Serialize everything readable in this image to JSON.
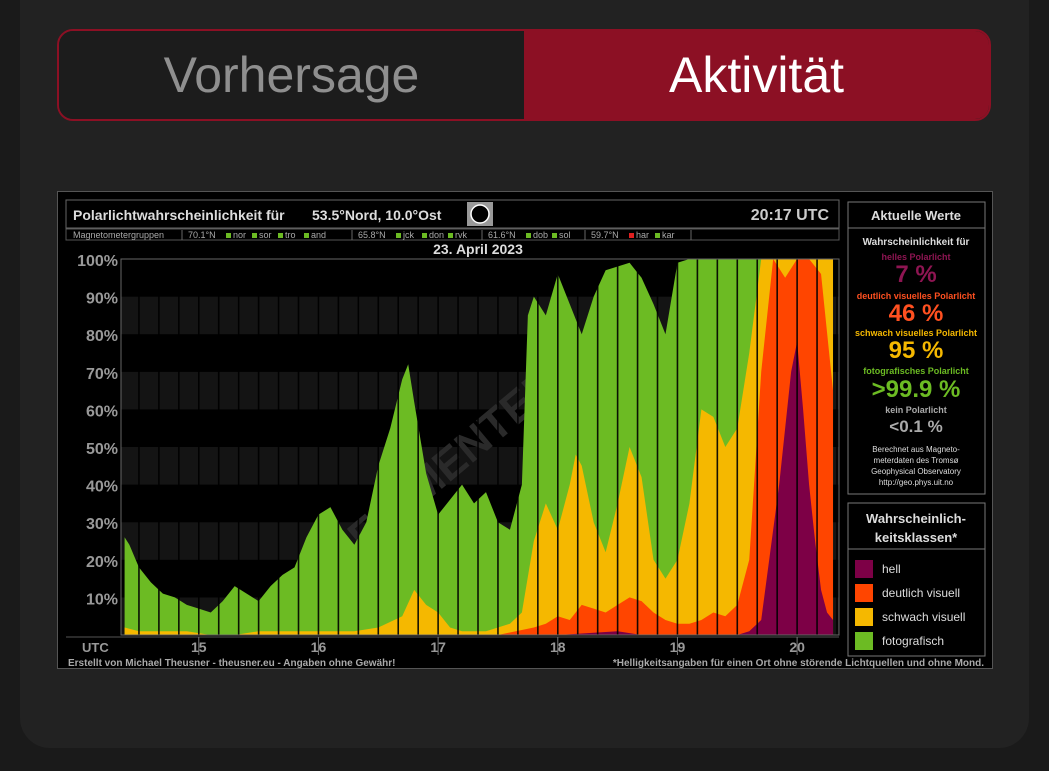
{
  "tabs": {
    "forecast": "Vorhersage",
    "activity": "Aktivität"
  },
  "chart_data": {
    "type": "area",
    "title": "Polarlichtwahrscheinlichkeit für",
    "location": "53.5°Nord, 10.0°Ost",
    "time": "20:17 UTC",
    "date": "23. April 2023",
    "magnetometer_row": {
      "label": "Magnetometergruppen",
      "groups": [
        {
          "lat": "70.1°N",
          "stations": [
            "nor",
            "sor",
            "tro",
            "and"
          ]
        },
        {
          "lat": "65.8°N",
          "stations": [
            "jck",
            "don",
            "rvk"
          ]
        },
        {
          "lat": "61.6°N",
          "stations": [
            "dob",
            "sol"
          ]
        },
        {
          "lat": "59.7°N",
          "stations": [
            "har",
            "kar"
          ]
        }
      ]
    },
    "y_ticks": [
      "10%",
      "20%",
      "30%",
      "40%",
      "50%",
      "60%",
      "70%",
      "80%",
      "90%",
      "100%"
    ],
    "ylim": [
      0,
      100
    ],
    "x_label": "UTC",
    "x_ticks": [
      "15",
      "16",
      "17",
      "18",
      "19",
      "20"
    ],
    "xlim": [
      14.35,
      20.35
    ],
    "watermark": "EXPERIMENTELL",
    "series_colors": {
      "fotografisch": "#6cbb23",
      "schwach": "#f5b800",
      "deutlich": "#ff4500",
      "hell": "#7d0046"
    },
    "series": [
      {
        "name": "fotografisch",
        "x": [
          14.38,
          14.42,
          14.5,
          14.6,
          14.7,
          14.8,
          14.9,
          15.0,
          15.1,
          15.2,
          15.3,
          15.4,
          15.5,
          15.6,
          15.7,
          15.8,
          15.9,
          16.0,
          16.1,
          16.2,
          16.3,
          16.4,
          16.5,
          16.6,
          16.7,
          16.75,
          16.8,
          16.9,
          17.0,
          17.1,
          17.2,
          17.3,
          17.4,
          17.5,
          17.6,
          17.7,
          17.75,
          17.8,
          17.9,
          18.0,
          18.1,
          18.2,
          18.3,
          18.4,
          18.5,
          18.6,
          18.7,
          18.8,
          18.9,
          19.0,
          19.1,
          19.2,
          19.3,
          19.4,
          19.5,
          19.6,
          19.7,
          19.8,
          19.9,
          20.0,
          20.1,
          20.2,
          20.3
        ],
        "values": [
          26,
          24,
          18,
          14,
          11,
          10,
          8,
          7,
          6,
          9,
          13,
          11,
          9,
          13,
          16,
          18,
          26,
          32,
          34,
          28,
          24,
          30,
          45,
          55,
          68,
          72,
          62,
          43,
          32,
          36,
          40,
          35,
          38,
          30,
          28,
          40,
          85,
          90,
          85,
          96,
          88,
          80,
          90,
          97,
          98,
          99,
          95,
          88,
          80,
          99,
          100,
          100,
          100,
          100,
          100,
          100,
          100,
          100,
          100,
          100,
          100,
          100,
          100
        ]
      },
      {
        "name": "schwach",
        "x": [
          14.38,
          14.5,
          14.7,
          14.9,
          15.1,
          15.3,
          15.5,
          15.7,
          15.9,
          16.1,
          16.3,
          16.5,
          16.7,
          16.8,
          16.9,
          17.0,
          17.1,
          17.2,
          17.3,
          17.4,
          17.5,
          17.6,
          17.7,
          17.8,
          17.9,
          18.0,
          18.1,
          18.15,
          18.2,
          18.3,
          18.4,
          18.5,
          18.6,
          18.7,
          18.8,
          18.9,
          19.0,
          19.1,
          19.2,
          19.3,
          19.4,
          19.5,
          19.6,
          19.7,
          19.8,
          19.9,
          20.0,
          20.1,
          20.2,
          20.3
        ],
        "values": [
          2,
          1,
          1,
          1,
          0,
          0,
          1,
          1,
          1,
          1,
          1,
          2,
          5,
          12,
          8,
          6,
          2,
          1,
          1,
          1,
          2,
          3,
          6,
          25,
          35,
          28,
          40,
          48,
          45,
          30,
          22,
          35,
          50,
          42,
          20,
          15,
          20,
          35,
          60,
          58,
          50,
          55,
          75,
          100,
          100,
          100,
          100,
          100,
          100,
          100
        ]
      },
      {
        "name": "deutlich",
        "x": [
          14.38,
          15.0,
          15.5,
          16.0,
          16.5,
          17.0,
          17.5,
          17.8,
          17.9,
          18.0,
          18.1,
          18.2,
          18.3,
          18.4,
          18.5,
          18.6,
          18.7,
          18.8,
          18.9,
          19.0,
          19.1,
          19.2,
          19.3,
          19.4,
          19.5,
          19.6,
          19.7,
          19.8,
          19.9,
          20.0,
          20.1,
          20.2,
          20.3
        ],
        "values": [
          0,
          0,
          0,
          0,
          0,
          0,
          0,
          2,
          3,
          5,
          4,
          8,
          7,
          6,
          8,
          10,
          9,
          6,
          4,
          3,
          3,
          4,
          6,
          5,
          8,
          20,
          70,
          100,
          95,
          100,
          100,
          96,
          65
        ]
      },
      {
        "name": "hell",
        "x": [
          14.38,
          15.0,
          16.0,
          17.0,
          18.0,
          18.5,
          18.7,
          19.0,
          19.5,
          19.6,
          19.7,
          19.8,
          19.85,
          19.9,
          19.95,
          20.0,
          20.05,
          20.1,
          20.15,
          20.2,
          20.25,
          20.3
        ],
        "values": [
          0,
          0,
          0,
          0,
          0,
          1,
          0,
          0,
          0,
          1,
          4,
          28,
          40,
          55,
          70,
          78,
          60,
          40,
          25,
          12,
          6,
          4
        ]
      }
    ],
    "credit_left": "Erstellt von Michael Theusner - theusner.eu - Angaben ohne Gewähr!",
    "credit_right": "*Helligkeitsangaben für einen Ort ohne störende Lichtquellen und ohne Mond."
  },
  "current": {
    "title": "Aktuelle Werte",
    "intro": "Wahrscheinlichkeit für",
    "rows": [
      {
        "label": "helles Polarlicht",
        "value": "7 %"
      },
      {
        "label": "deutlich visuelles Polarlicht",
        "value": "46 %"
      },
      {
        "label": "schwach visuelles Polarlicht",
        "value": "95 %"
      },
      {
        "label": "fotografisches Polarlicht",
        "value": ">99.9 %"
      },
      {
        "label": "kein Polarlicht",
        "value": "<0.1 %"
      }
    ],
    "source": [
      "Berechnet aus Magneto-",
      "meterdaten des Tromsø",
      "Geophysical Observatory",
      "http://geo.phys.uit.no"
    ]
  },
  "legend": {
    "title_line1": "Wahrscheinlich-",
    "title_line2": "keitsklassen*",
    "items": [
      {
        "label": "hell",
        "color": "#7d0046"
      },
      {
        "label": "deutlich visuell",
        "color": "#ff4500"
      },
      {
        "label": "schwach visuell",
        "color": "#f5b800"
      },
      {
        "label": "fotografisch",
        "color": "#6cbb23"
      }
    ]
  }
}
